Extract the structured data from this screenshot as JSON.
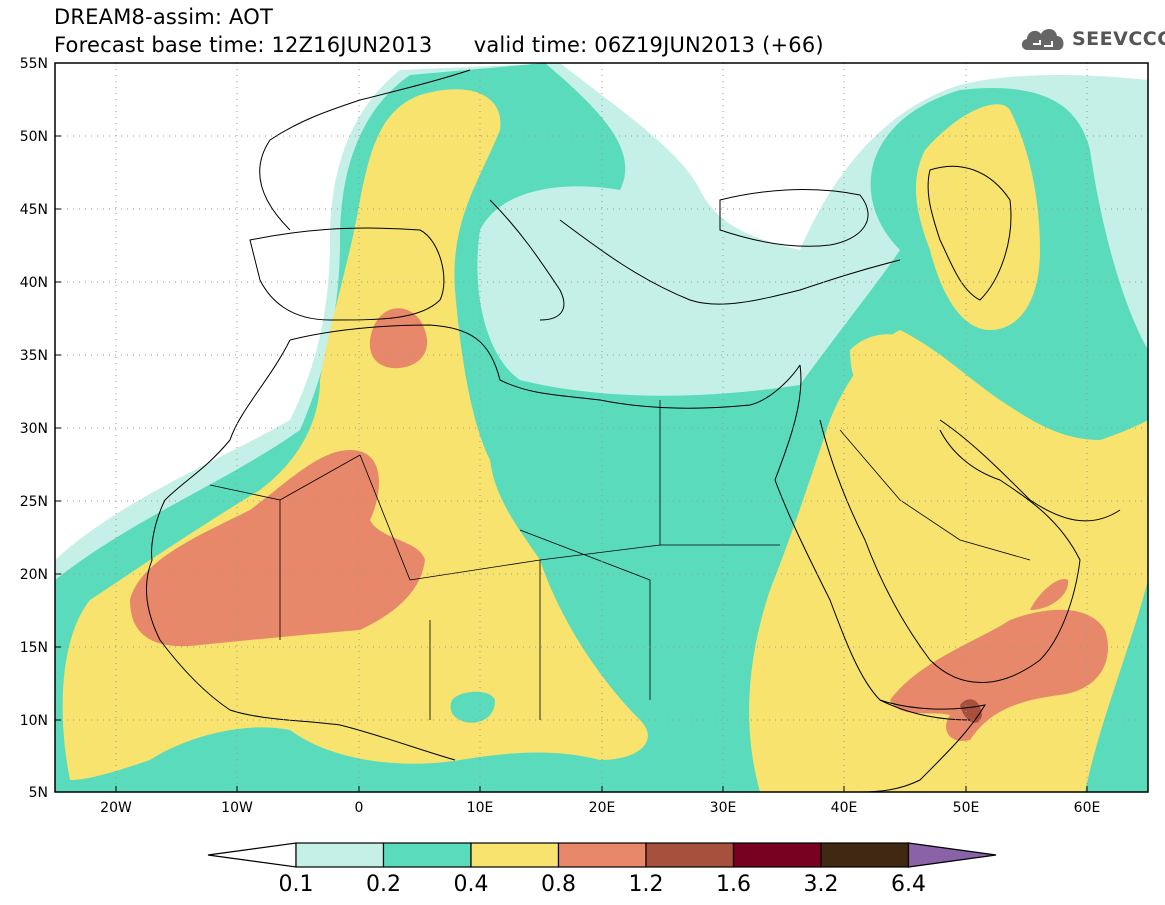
{
  "header": {
    "title": "DREAM8-assim: AOT",
    "base_time_label": "Forecast base time: 12Z16JUN2013",
    "valid_time_label": "valid time: 06Z19JUN2013 (+66)"
  },
  "logo": {
    "text": "SEEVCCC",
    "icon": "cloud-icon"
  },
  "map": {
    "lat_labels": [
      "55N",
      "50N",
      "45N",
      "40N",
      "35N",
      "30N",
      "25N",
      "20N",
      "15N",
      "10N",
      "5N"
    ],
    "lon_labels": [
      "20W",
      "10W",
      "0",
      "10E",
      "20E",
      "30E",
      "40E",
      "50E",
      "60E"
    ],
    "lat_range": [
      5,
      55
    ],
    "lon_range": [
      -25,
      65
    ],
    "grid": "dotted",
    "field": "aerosol optical thickness"
  },
  "colorbar": {
    "levels": [
      "0.1",
      "0.2",
      "0.4",
      "0.8",
      "1.2",
      "1.6",
      "3.2",
      "6.4"
    ],
    "colors": [
      "#ffffff",
      "#c4f0e8",
      "#5adcbc",
      "#f7e36e",
      "#e8886a",
      "#a8503e",
      "#780020",
      "#402812",
      "#8a62a8"
    ]
  }
}
